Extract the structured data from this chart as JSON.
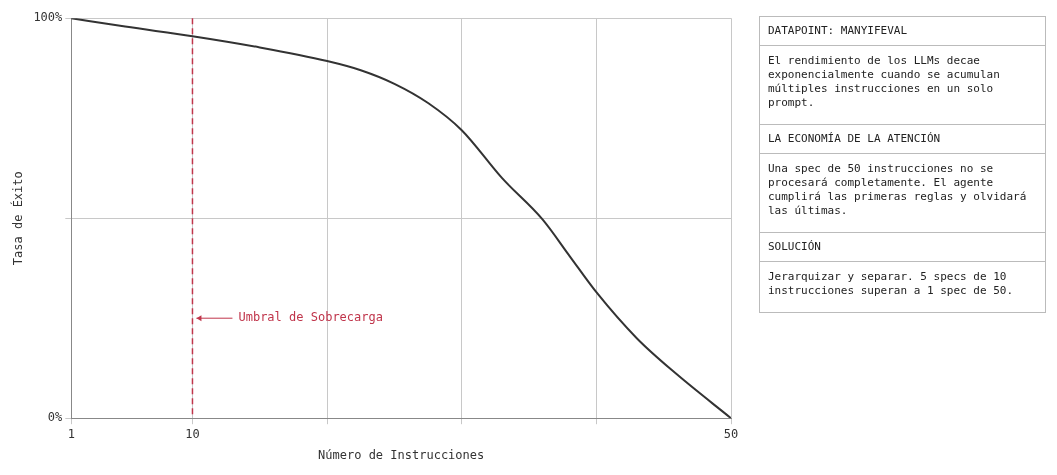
{
  "chart_data": [
    {
      "type": "line",
      "xlabel": "Número de Instrucciones",
      "ylabel": "Tasa de Éxito",
      "x": [
        1,
        5,
        10,
        15,
        20,
        22.5,
        25,
        27.5,
        30,
        33,
        36,
        38,
        40,
        43,
        46,
        50
      ],
      "series": [
        {
          "color": "#333333",
          "values": [
            100,
            97.9,
            95.5,
            92.7,
            89.3,
            87,
            83.6,
            78.8,
            72,
            60,
            49.7,
            40.6,
            31.5,
            20,
            10.9,
            0
          ]
        }
      ],
      "xlim": [
        1,
        50
      ],
      "xticks": [
        1,
        10,
        {
          "value": 20,
          "label": null
        },
        {
          "value": 30,
          "label": null
        },
        {
          "value": 40,
          "label": null
        },
        50
      ],
      "ylim": [
        0,
        100
      ],
      "yticks": [
        {
          "value": 0,
          "label": "0%"
        },
        {
          "value": 50,
          "label": null
        },
        {
          "value": 100,
          "label": "100%"
        }
      ],
      "grid": true,
      "legend": false,
      "marker": "none",
      "line_style": "solid",
      "ref_lines": [
        {
          "axis": "x",
          "value": 10,
          "label": "Umbral de Sobrecarga",
          "color": "#c0354b",
          "line_style": "dashed"
        }
      ]
    },
    {
      "type": "other",
      "title": "DATAPOINT: MANYIFEVAL",
      "annotations": [
        "El rendimiento de los LLMs decae exponencialmente cuando se acumulan múltiples instrucciones en un solo prompt.",
        "LA ECONOMÍA DE LA ATENCIÓN",
        "Una spec de 50 instrucciones no se procesará completamente. El agente cumplirá las primeras reglas y olvidará las últimas.",
        "SOLUCIÓN",
        "Jerarquizar y separar. 5 specs de 10 instrucciones superan a 1 spec de 50."
      ]
    }
  ]
}
